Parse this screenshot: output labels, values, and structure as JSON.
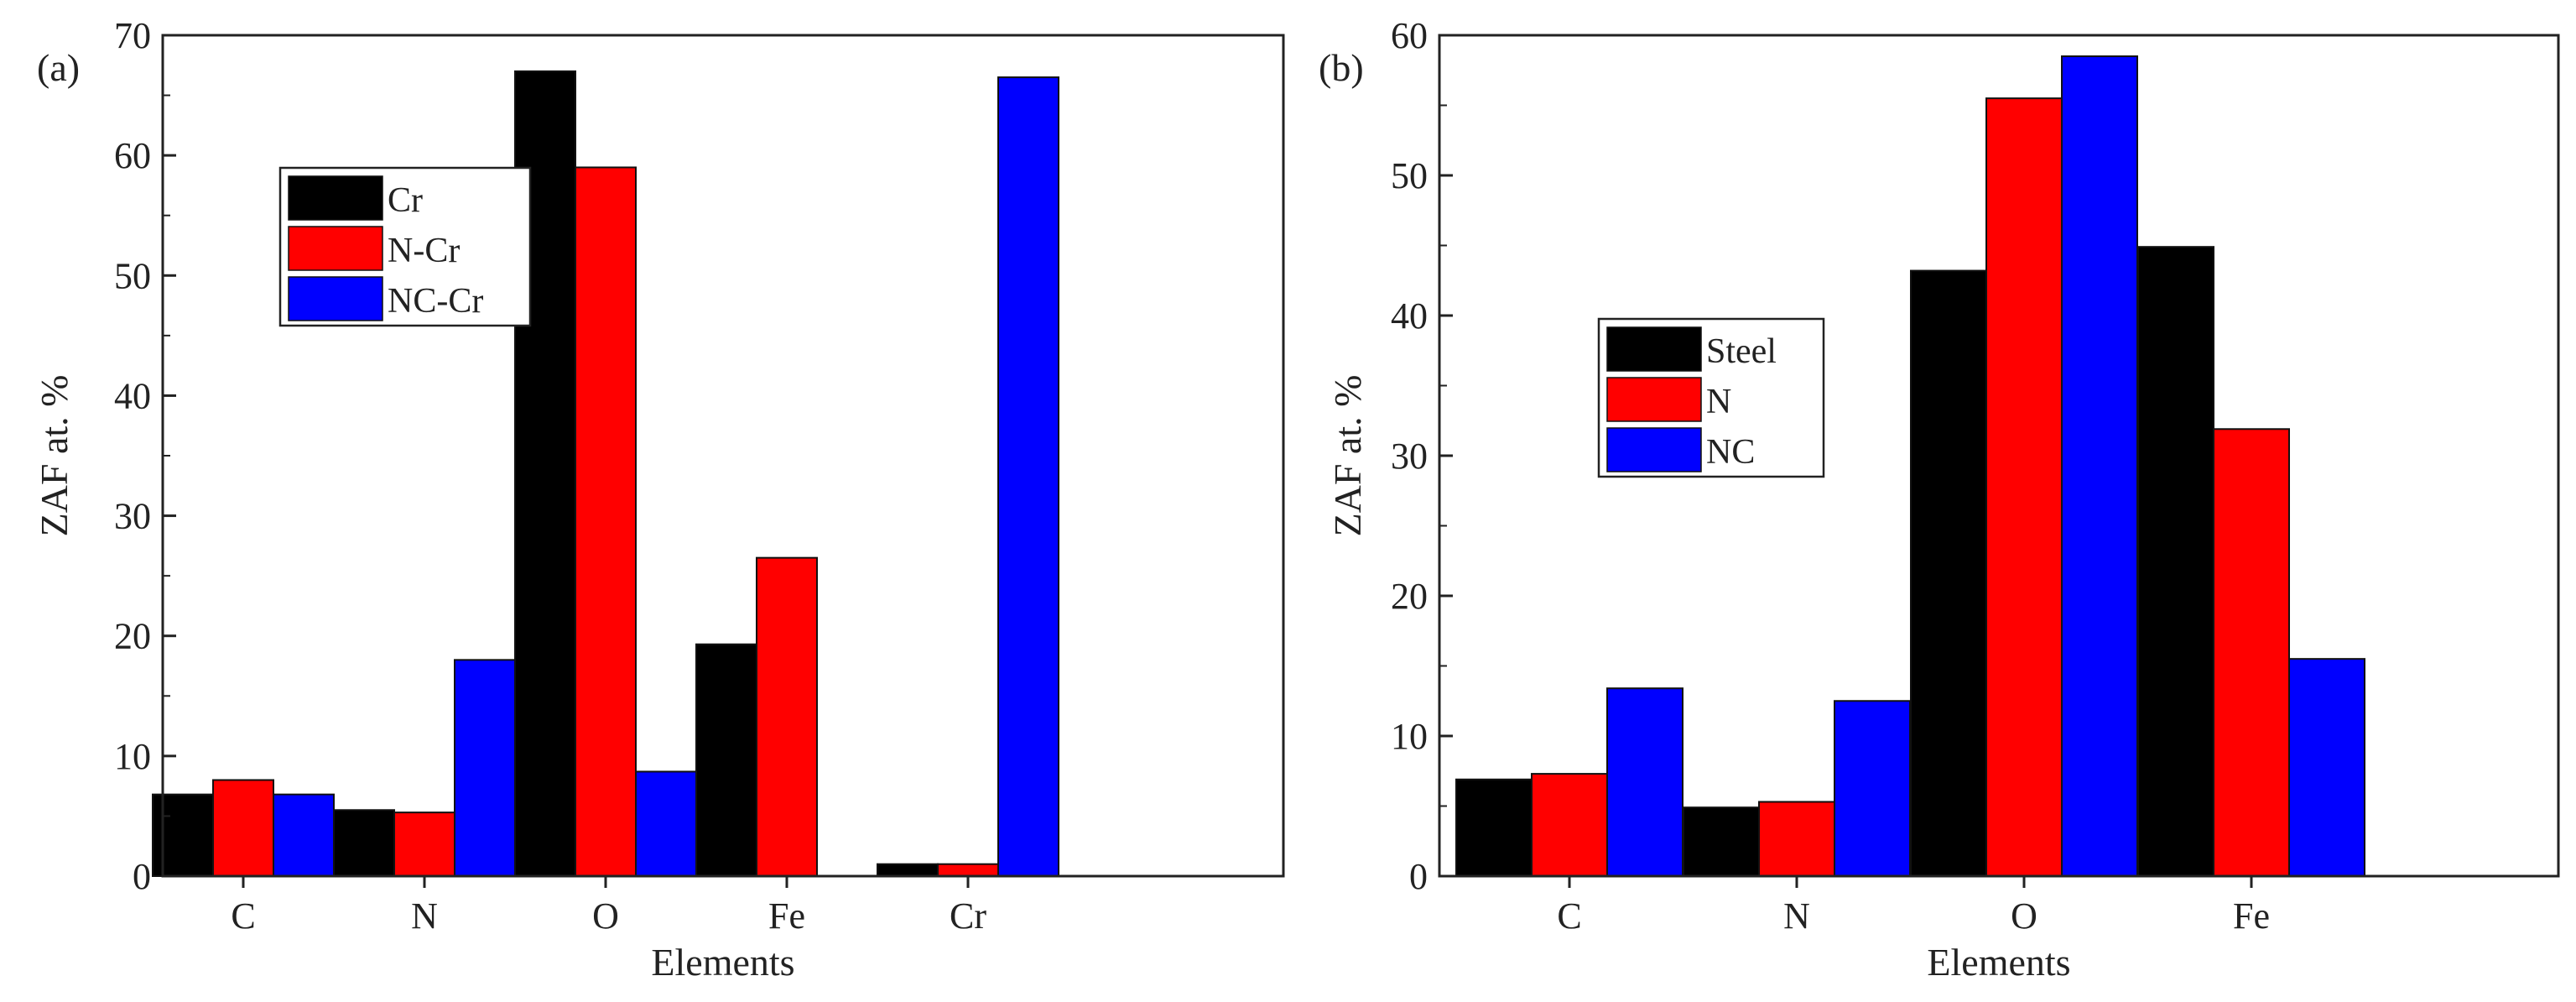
{
  "colors": {
    "axis": "#222222",
    "frame": "#222222"
  },
  "chart_data": [
    {
      "panel": "(a)",
      "type": "bar",
      "xlabel": "Elements",
      "ylabel": "ZAF at. %",
      "ylim": [
        0,
        70
      ],
      "yticks": [
        0,
        10,
        20,
        30,
        40,
        50,
        60,
        70
      ],
      "categories": [
        "C",
        "N",
        "O",
        "Fe",
        "Cr"
      ],
      "series": [
        {
          "name": "Cr",
          "color": "#000000",
          "values": [
            6.8,
            5.5,
            67.0,
            19.3,
            1.0
          ]
        },
        {
          "name": "N-Cr",
          "color": "#ff0000",
          "values": [
            8.0,
            5.3,
            59.0,
            26.5,
            1.0
          ]
        },
        {
          "name": "NC-Cr",
          "color": "#0000ff",
          "values": [
            6.8,
            18.0,
            8.7,
            0,
            66.5
          ]
        }
      ],
      "legend_position": "upper-left"
    },
    {
      "panel": "(b)",
      "type": "bar",
      "xlabel": "Elements",
      "ylabel": "ZAF at. %",
      "ylim": [
        0,
        60
      ],
      "yticks": [
        0,
        10,
        20,
        30,
        40,
        50,
        60
      ],
      "categories": [
        "C",
        "N",
        "O",
        "Fe"
      ],
      "series": [
        {
          "name": "Steel",
          "color": "#000000",
          "values": [
            6.9,
            4.9,
            43.2,
            44.9
          ]
        },
        {
          "name": "N",
          "color": "#ff0000",
          "values": [
            7.3,
            5.3,
            55.5,
            31.9
          ]
        },
        {
          "name": "NC",
          "color": "#0000ff",
          "values": [
            13.4,
            12.5,
            58.5,
            15.5
          ]
        }
      ],
      "legend_position": "center-left"
    }
  ]
}
